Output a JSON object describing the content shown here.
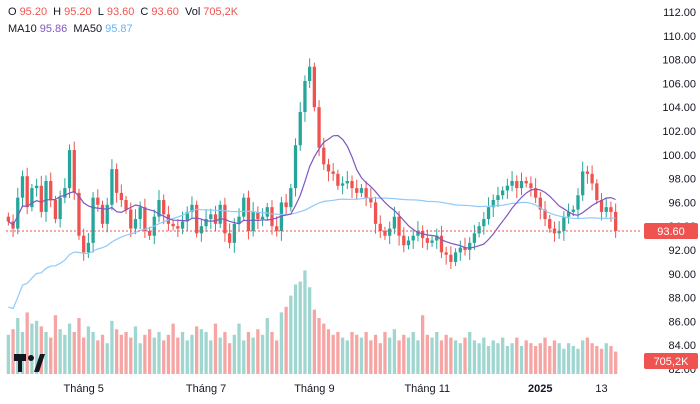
{
  "legend": {
    "ohlc": {
      "o_label": "O",
      "o": "95.20",
      "h_label": "H",
      "h": "95.20",
      "l_label": "L",
      "l": "93.60",
      "c_label": "C",
      "c": "93.60",
      "vol_label": "Vol",
      "vol": "705,2K"
    },
    "ma10_label": "MA10",
    "ma10": "95.86",
    "ma50_label": "MA50",
    "ma50": "95.87"
  },
  "colors": {
    "up": "#26a69a",
    "down": "#ef5350",
    "up_vol": "#9fd6d0",
    "down_vol": "#f5a6a4",
    "ma10": "#7e57c2",
    "ma50": "#90caf9"
  },
  "tags": {
    "last_price": "93.60",
    "last_volume": "705,2K"
  },
  "chart_data": {
    "type": "candlestick",
    "y_ticks": [
      "112.00",
      "110.00",
      "108.00",
      "106.00",
      "104.00",
      "102.00",
      "100.00",
      "98.00",
      "96.00",
      "94.00",
      "92.00",
      "90.00",
      "88.00",
      "86.00",
      "84.00",
      "82.00"
    ],
    "ylim": [
      82,
      112
    ],
    "x_labels": [
      {
        "label": "Tháng 5",
        "idx": 16,
        "bold": false
      },
      {
        "label": "Tháng 7",
        "idx": 42,
        "bold": false
      },
      {
        "label": "Tháng 9",
        "idx": 65,
        "bold": false
      },
      {
        "label": "Tháng 11",
        "idx": 89,
        "bold": false
      },
      {
        "label": "2025",
        "idx": 113,
        "bold": true
      },
      {
        "label": "13",
        "idx": 126,
        "bold": false
      }
    ],
    "last_close": 93.6,
    "closes": [
      94.4,
      93.8,
      96.4,
      98.2,
      95.6,
      97.2,
      97.4,
      95.2,
      97.8,
      96.2,
      94.6,
      96.4,
      97.2,
      100.4,
      96.8,
      93.2,
      91.8,
      92.6,
      96.4,
      95.8,
      94.2,
      95.8,
      98.8,
      96.8,
      96.2,
      95.4,
      93.8,
      94.6,
      95.6,
      93.6,
      93.2,
      94.8,
      96.2,
      95.0,
      94.2,
      94.0,
      93.8,
      94.4,
      95.2,
      95.8,
      93.4,
      94.0,
      94.6,
      95.0,
      94.2,
      95.8,
      93.4,
      92.6,
      94.2,
      94.8,
      96.4,
      93.6,
      95.2,
      94.6,
      94.8,
      95.6,
      94.0,
      93.6,
      96.0,
      95.6,
      97.2,
      100.8,
      103.6,
      106.2,
      107.4,
      104.0,
      100.6,
      99.2,
      98.6,
      98.4,
      97.4,
      97.6,
      97.8,
      97.2,
      96.8,
      97.2,
      96.4,
      96.0,
      94.2,
      93.6,
      93.2,
      93.8,
      94.8,
      93.2,
      92.4,
      92.8,
      93.2,
      93.6,
      93.0,
      92.6,
      92.8,
      93.2,
      91.8,
      91.6,
      91.0,
      91.8,
      92.2,
      92.0,
      92.6,
      93.4,
      94.0,
      94.6,
      95.6,
      96.2,
      96.6,
      97.0,
      97.4,
      97.8,
      97.2,
      97.8,
      97.6,
      97.2,
      96.4,
      95.4,
      94.6,
      93.8,
      93.4,
      93.6,
      94.8,
      95.2,
      95.4,
      96.6,
      98.6,
      98.4,
      97.6,
      96.2,
      95.2,
      95.6,
      95.2,
      93.6
    ],
    "volume": [
      0.28,
      0.32,
      0.4,
      0.3,
      0.44,
      0.36,
      0.38,
      0.34,
      0.3,
      0.26,
      0.42,
      0.32,
      0.28,
      0.36,
      0.3,
      0.4,
      0.26,
      0.34,
      0.3,
      0.24,
      0.28,
      0.22,
      0.38,
      0.32,
      0.28,
      0.3,
      0.26,
      0.34,
      0.22,
      0.28,
      0.32,
      0.26,
      0.3,
      0.24,
      0.28,
      0.36,
      0.26,
      0.3,
      0.24,
      0.28,
      0.34,
      0.32,
      0.3,
      0.24,
      0.36,
      0.26,
      0.3,
      0.22,
      0.28,
      0.36,
      0.24,
      0.3,
      0.26,
      0.32,
      0.28,
      0.4,
      0.3,
      0.24,
      0.44,
      0.48,
      0.56,
      0.64,
      0.66,
      0.74,
      0.62,
      0.46,
      0.4,
      0.36,
      0.32,
      0.28,
      0.3,
      0.26,
      0.24,
      0.3,
      0.28,
      0.26,
      0.3,
      0.24,
      0.28,
      0.22,
      0.3,
      0.26,
      0.32,
      0.24,
      0.28,
      0.26,
      0.3,
      0.24,
      0.42,
      0.28,
      0.26,
      0.3,
      0.24,
      0.28,
      0.26,
      0.24,
      0.22,
      0.26,
      0.3,
      0.24,
      0.22,
      0.26,
      0.2,
      0.24,
      0.22,
      0.26,
      0.2,
      0.22,
      0.26,
      0.2,
      0.24,
      0.22,
      0.2,
      0.22,
      0.26,
      0.2,
      0.24,
      0.22,
      0.18,
      0.22,
      0.2,
      0.18,
      0.24,
      0.26,
      0.22,
      0.2,
      0.18,
      0.22,
      0.2,
      0.16
    ]
  }
}
